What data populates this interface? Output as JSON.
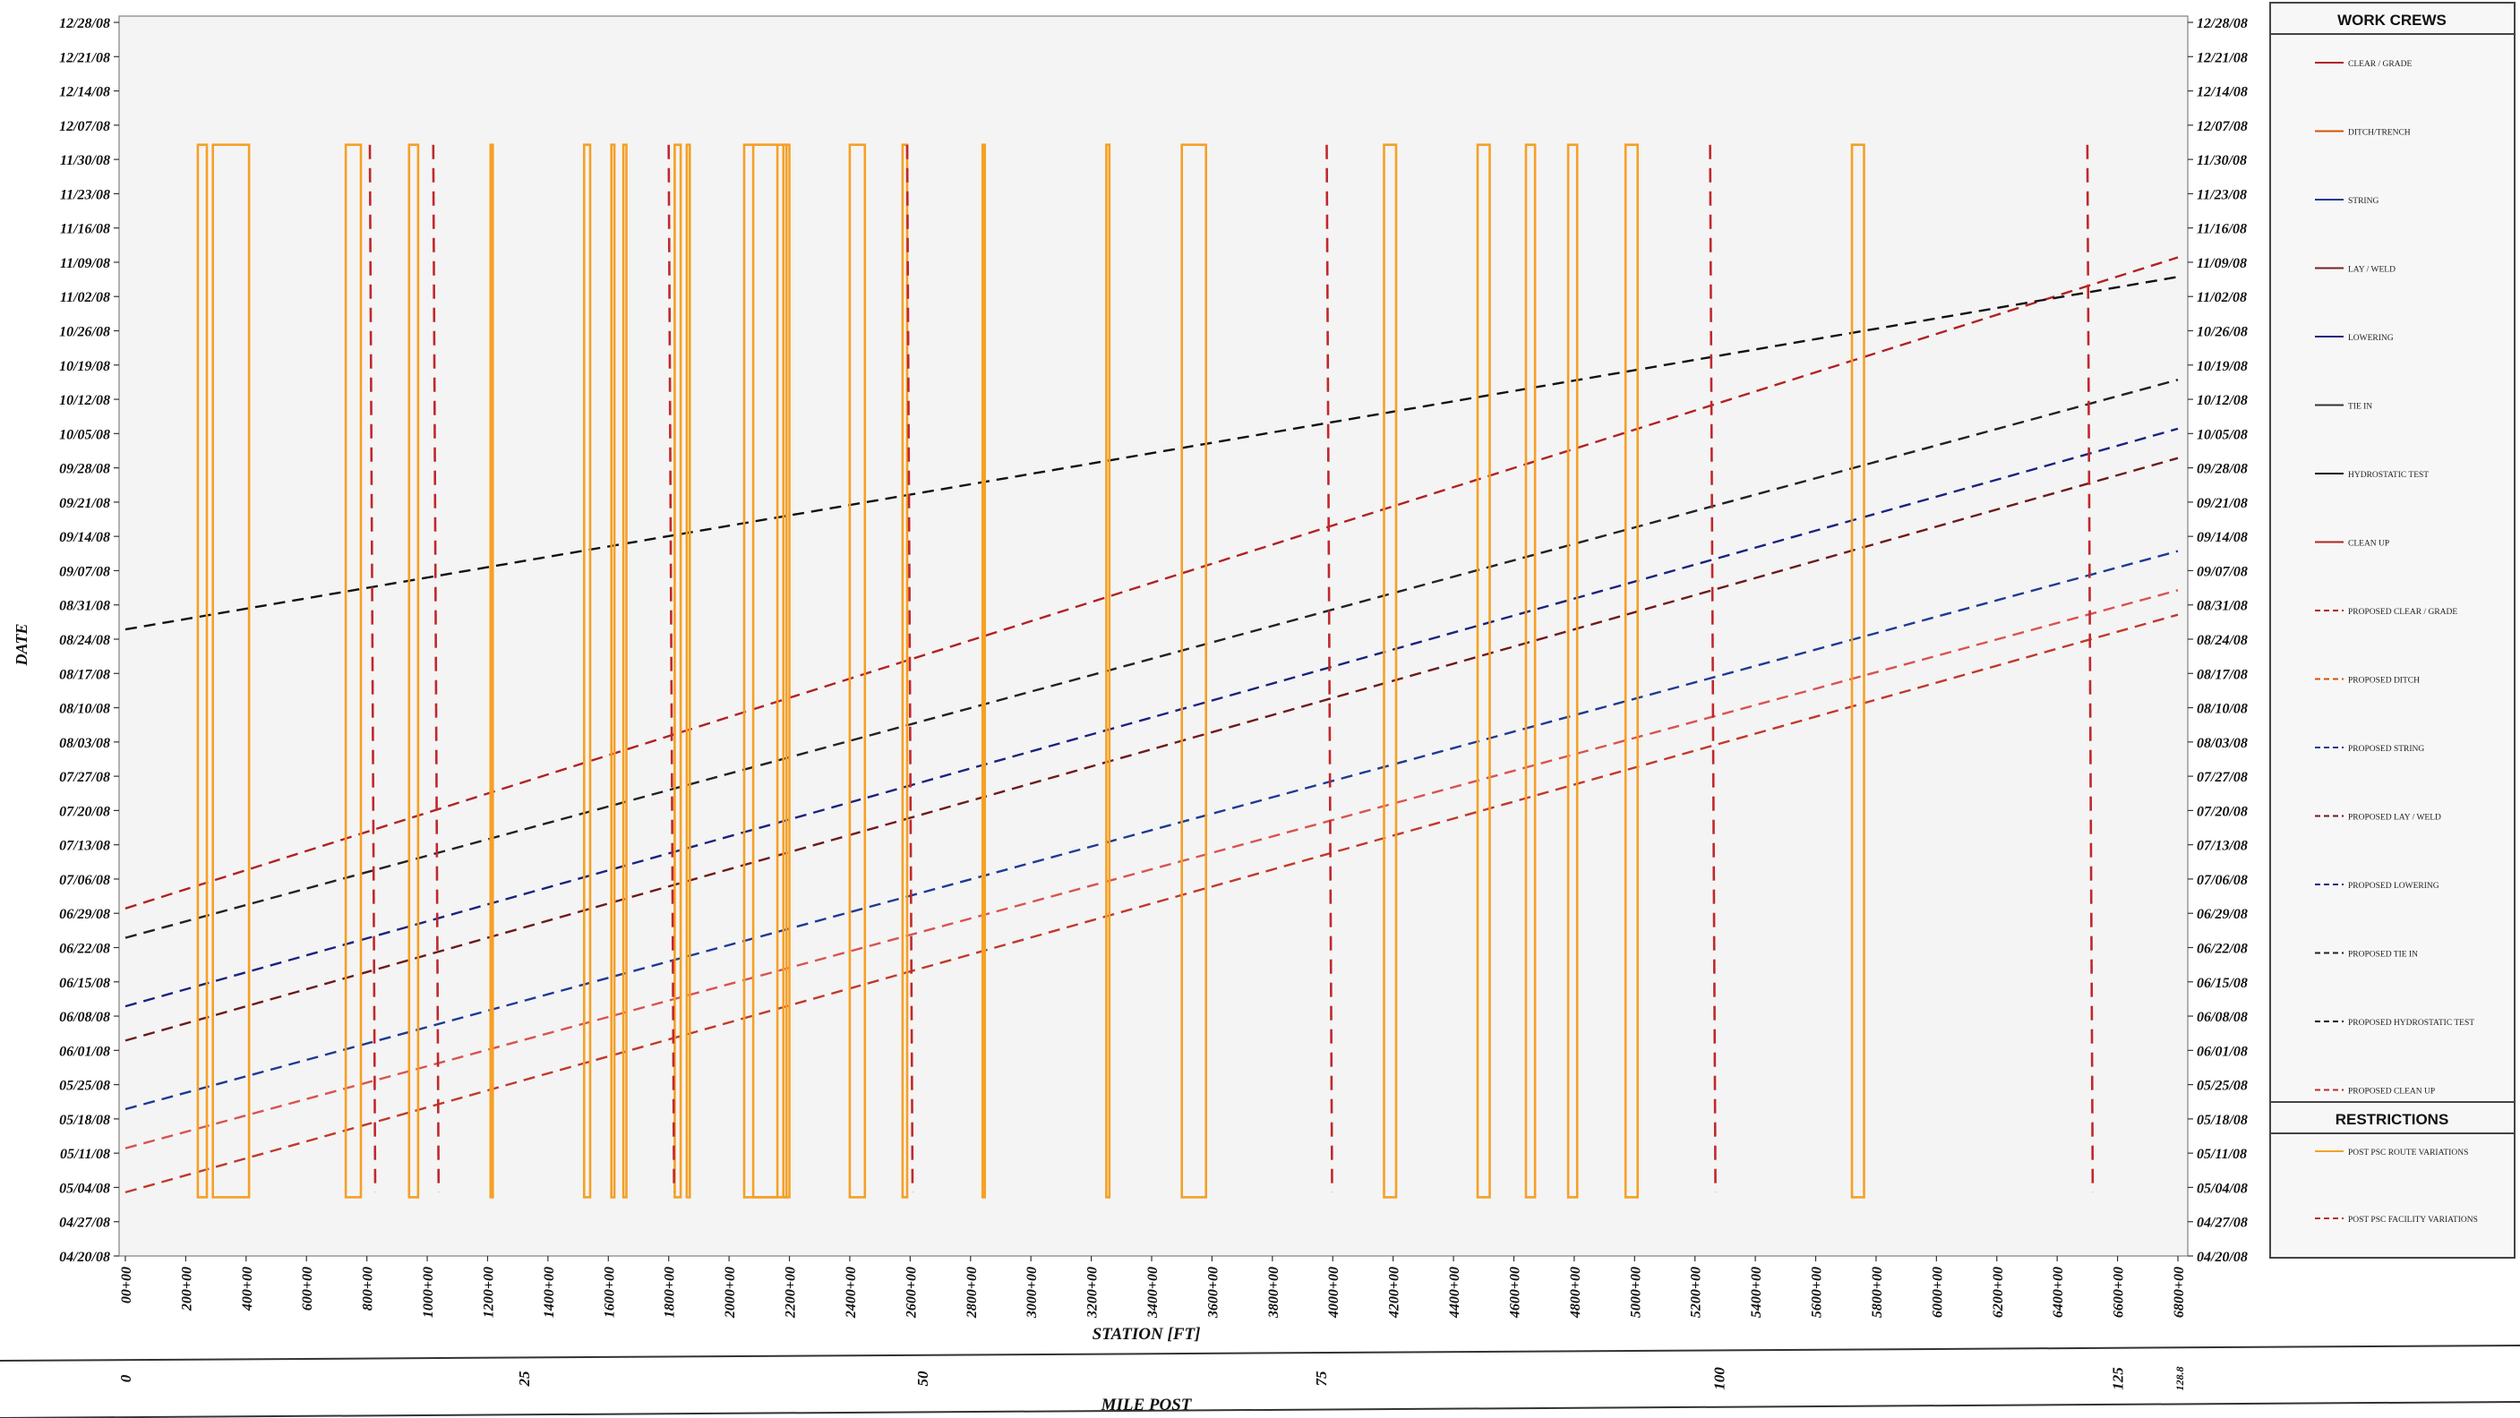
{
  "chart_data": {
    "type": "line",
    "xlabel": "STATION [FT]",
    "ylabel": "DATE",
    "milepost_label": "MILE POST",
    "x_tick_labels": [
      "00+00",
      "200+00",
      "400+00",
      "600+00",
      "800+00",
      "1000+00",
      "1200+00",
      "1400+00",
      "1600+00",
      "1800+00",
      "2000+00",
      "2200+00",
      "2400+00",
      "2600+00",
      "2800+00",
      "3000+00",
      "3200+00",
      "3400+00",
      "3600+00",
      "3800+00",
      "4000+00",
      "4200+00",
      "4400+00",
      "4600+00",
      "4800+00",
      "5000+00",
      "5200+00",
      "5400+00",
      "5600+00",
      "5800+00",
      "6000+00",
      "6200+00",
      "6400+00",
      "6600+00",
      "6800+00"
    ],
    "xlim": [
      0,
      6800
    ],
    "y_tick_labels": [
      "04/20/08",
      "04/27/08",
      "05/04/08",
      "05/11/08",
      "05/18/08",
      "05/25/08",
      "06/01/08",
      "06/08/08",
      "06/15/08",
      "06/22/08",
      "06/29/08",
      "07/06/08",
      "07/13/08",
      "07/20/08",
      "07/27/08",
      "08/03/08",
      "08/10/08",
      "08/17/08",
      "08/24/08",
      "08/31/08",
      "09/07/08",
      "09/14/08",
      "09/21/08",
      "09/28/08",
      "10/05/08",
      "10/12/08",
      "10/19/08",
      "10/26/08",
      "11/02/08",
      "11/09/08",
      "11/16/08",
      "11/23/08",
      "11/30/08",
      "12/07/08",
      "12/14/08",
      "12/21/08",
      "12/28/08"
    ],
    "right_y_tick_labels": [
      "04/20/08",
      "04/27/08",
      "05/04/08",
      "05/11/08",
      "05/18/08",
      "05/25/08",
      "06/01/08",
      "06/08/08",
      "06/15/08",
      "06/22/08",
      "06/29/08",
      "07/06/08",
      "07/13/08",
      "07/20/08",
      "07/27/08",
      "08/03/08",
      "08/10/08",
      "08/17/08",
      "08/24/08",
      "08/31/08",
      "09/07/08",
      "09/14/08",
      "09/21/08",
      "09/28/08",
      "10/05/08",
      "10/12/08",
      "10/19/08",
      "10/26/08",
      "11/02/08",
      "11/09/08",
      "11/16/08",
      "11/23/08",
      "11/30/08",
      "12/07/08",
      "12/14/08",
      "12/21/08",
      "12/28/08"
    ],
    "ylim": [
      "2008-04-20",
      "2008-12-28"
    ],
    "milepost_ticks": [
      {
        "label": "0",
        "station": 0
      },
      {
        "label": "25",
        "station": 1320
      },
      {
        "label": "50",
        "station": 2640
      },
      {
        "label": "75",
        "station": 3960
      },
      {
        "label": "100",
        "station": 5280
      },
      {
        "label": "125",
        "station": 6600
      },
      {
        "label": "128.8",
        "station": 6800
      }
    ],
    "series": [
      {
        "name": "PROPOSED CLEAR / GRADE",
        "color": "#b22222",
        "x": [
          0,
          6800
        ],
        "y": [
          "2008-06-30",
          "2008-11-10"
        ]
      },
      {
        "name": "PROPOSED DITCH",
        "color": "#c0392b",
        "x": [
          0,
          6800
        ],
        "y": [
          "2008-05-03",
          "2008-08-29"
        ]
      },
      {
        "name": "PROPOSED STRING",
        "color": "#1f3a93",
        "x": [
          0,
          6800
        ],
        "y": [
          "2008-05-20",
          "2008-09-11"
        ]
      },
      {
        "name": "PROPOSED LAY / WELD",
        "color": "#6e1a1a",
        "x": [
          0,
          6800
        ],
        "y": [
          "2008-06-03",
          "2008-09-30"
        ]
      },
      {
        "name": "PROPOSED LOWERING",
        "color": "#1a237e",
        "x": [
          0,
          6800
        ],
        "y": [
          "2008-06-10",
          "2008-10-06"
        ]
      },
      {
        "name": "PROPOSED TIE IN",
        "color": "#222222",
        "x": [
          0,
          6800
        ],
        "y": [
          "2008-06-24",
          "2008-10-16"
        ]
      },
      {
        "name": "PROPOSED HYDROSTATIC TEST",
        "color": "#111111",
        "x": [
          0,
          6800
        ],
        "y": [
          "2008-08-26",
          "2008-11-06"
        ]
      },
      {
        "name": "PROPOSED CLEAN UP",
        "color": "#d9534f",
        "x": [
          0,
          6800
        ],
        "y": [
          "2008-05-12",
          "2008-09-03"
        ]
      }
    ],
    "route_variations": {
      "name": "POST PSC ROUTE VARIATIONS",
      "color": "#f5a025",
      "y": [
        "2008-05-02",
        "2008-12-03"
      ],
      "ranges": [
        [
          240,
          270
        ],
        [
          290,
          410
        ],
        [
          730,
          780
        ],
        [
          940,
          970
        ],
        [
          1210,
          1215
        ],
        [
          1520,
          1540
        ],
        [
          1610,
          1620
        ],
        [
          1650,
          1660
        ],
        [
          1820,
          1840
        ],
        [
          1860,
          1870
        ],
        [
          2050,
          2190
        ],
        [
          2080,
          2160
        ],
        [
          2180,
          2200
        ],
        [
          2400,
          2450
        ],
        [
          2575,
          2590
        ],
        [
          2840,
          2845
        ],
        [
          3250,
          3260
        ],
        [
          3500,
          3580
        ],
        [
          4170,
          4210
        ],
        [
          4480,
          4520
        ],
        [
          4640,
          4670
        ],
        [
          4780,
          4810
        ],
        [
          4970,
          5010
        ],
        [
          5720,
          5760
        ]
      ]
    },
    "facility_variations": {
      "name": "POST PSC FACILITY VARIATIONS",
      "color": "#c0282d",
      "y": [
        "2008-05-03",
        "2008-12-03"
      ],
      "x": [
        810,
        1020,
        1800,
        2590,
        3980,
        5250,
        6500
      ]
    }
  },
  "legend": {
    "work_crews_title": "WORK CREWS",
    "restrictions_title": "RESTRICTIONS",
    "work_crews": [
      {
        "label": "CLEAR / GRADE",
        "color": "#b22222",
        "style": "solid"
      },
      {
        "label": "DITCH/TRENCH",
        "color": "#d35400",
        "style": "solid"
      },
      {
        "label": "STRING",
        "color": "#1f3a93",
        "style": "solid"
      },
      {
        "label": "LAY / WELD",
        "color": "#7b1f1f",
        "style": "solid"
      },
      {
        "label": "LOWERING",
        "color": "#1a237e",
        "style": "solid"
      },
      {
        "label": "TIE IN",
        "color": "#333333",
        "style": "solid"
      },
      {
        "label": "HYDROSTATIC TEST",
        "color": "#111111",
        "style": "solid"
      },
      {
        "label": "CLEAN UP",
        "color": "#b22222",
        "style": "solid"
      },
      {
        "label": "PROPOSED CLEAR / GRADE",
        "color": "#b22222",
        "style": "dashed"
      },
      {
        "label": "PROPOSED DITCH",
        "color": "#d35400",
        "style": "dashed"
      },
      {
        "label": "PROPOSED STRING",
        "color": "#1f3a93",
        "style": "dashed"
      },
      {
        "label": "PROPOSED LAY / WELD",
        "color": "#6e1a1a",
        "style": "dashed"
      },
      {
        "label": "PROPOSED LOWERING",
        "color": "#1a237e",
        "style": "dashed"
      },
      {
        "label": "PROPOSED TIE IN",
        "color": "#222222",
        "style": "dashed"
      },
      {
        "label": "PROPOSED HYDROSTATIC TEST",
        "color": "#111111",
        "style": "dashed"
      },
      {
        "label": "PROPOSED CLEAN UP",
        "color": "#c0282d",
        "style": "dashed"
      }
    ],
    "restrictions": [
      {
        "label": "POST PSC ROUTE VARIATIONS",
        "color": "#f5a025",
        "style": "solid"
      },
      {
        "label": "POST PSC FACILITY VARIATIONS",
        "color": "#c0282d",
        "style": "dashed"
      }
    ]
  }
}
